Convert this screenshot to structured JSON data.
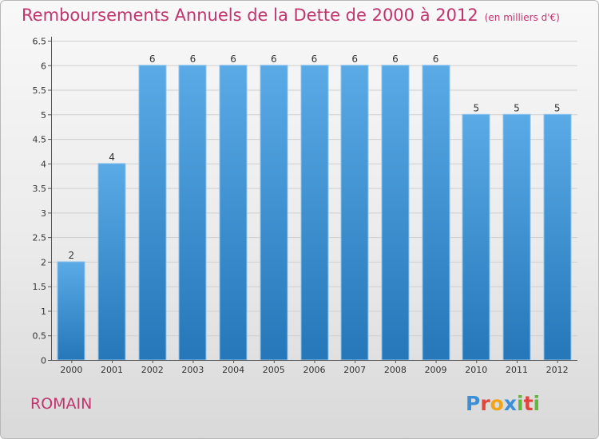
{
  "title": "Remboursements Annuels de la Dette de 2000 à 2012",
  "unit_note": "(en milliers d'€)",
  "commune": "ROMAIN",
  "logo": {
    "letters": [
      "P",
      "r",
      "o",
      "x",
      "i",
      "t",
      "i"
    ],
    "colors": [
      "#3b8fd6",
      "#e1453c",
      "#f0a416",
      "#3b8fd6",
      "#61b83d",
      "#e1453c",
      "#61b83d"
    ]
  },
  "colors": {
    "title": "#c0356e",
    "bar_light": "#5aaae6",
    "bar_dark": "#2577b9",
    "axis": "#555555",
    "grid": "#cfcfcf"
  },
  "chart_data": {
    "type": "bar",
    "categories": [
      "2000",
      "2001",
      "2002",
      "2003",
      "2004",
      "2005",
      "2006",
      "2007",
      "2008",
      "2009",
      "2010",
      "2011",
      "2012"
    ],
    "values": [
      2,
      4,
      6,
      6,
      6,
      6,
      6,
      6,
      6,
      6,
      5,
      5,
      5
    ],
    "data_labels": [
      "2",
      "4",
      "6",
      "6",
      "6",
      "6",
      "6",
      "6",
      "6",
      "6",
      "5",
      "5",
      "5"
    ],
    "ylim": [
      0,
      6.5
    ],
    "yticks": [
      0,
      0.5,
      1,
      1.5,
      2,
      2.5,
      3,
      3.5,
      4,
      4.5,
      5,
      5.5,
      6,
      6.5
    ],
    "ytick_labels": [
      "0",
      "0.5",
      "1",
      "1.5",
      "2",
      "2.5",
      "3",
      "3.5",
      "4",
      "4.5",
      "5",
      "5.5",
      "6",
      "6.5"
    ],
    "grid": true
  }
}
